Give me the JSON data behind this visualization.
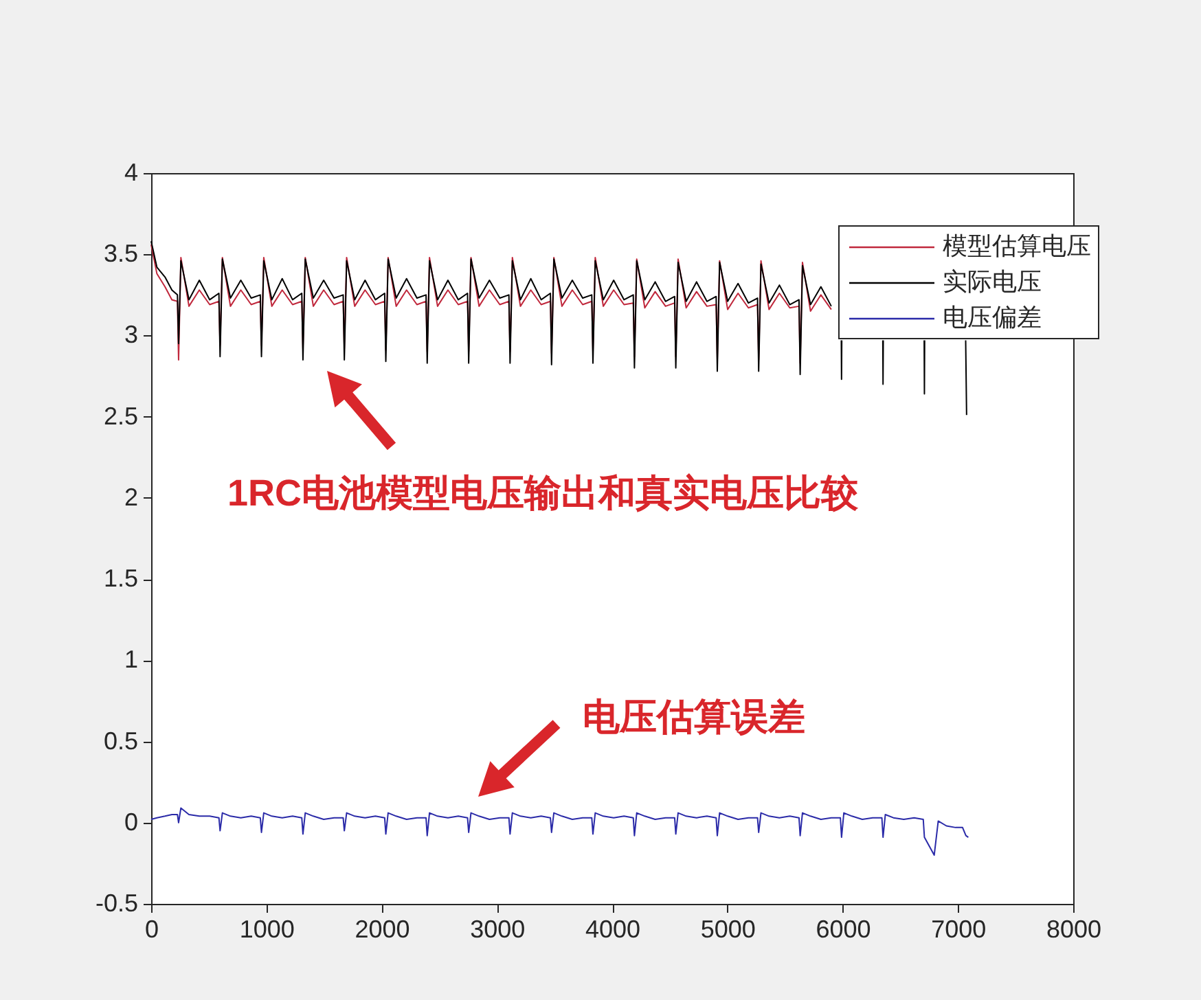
{
  "chart_data": {
    "type": "line",
    "xlim": [
      0,
      8000
    ],
    "xticks": [
      0,
      1000,
      2000,
      3000,
      4000,
      5000,
      6000,
      7000,
      8000
    ],
    "ylim": [
      -0.5,
      4
    ],
    "yticks": [
      -0.5,
      0,
      0.5,
      1,
      1.5,
      2,
      2.5,
      3,
      3.5,
      4
    ],
    "legend": "top right",
    "annotations": [
      "1RC电池模型电压输出和真实电压比较",
      "电压估算误差"
    ],
    "x": [
      0,
      50,
      120,
      180,
      228,
      238,
      258,
      328,
      418,
      508,
      588,
      598,
      618,
      688,
      778,
      868,
      947,
      957,
      977,
      1047,
      1137,
      1227,
      1307,
      1317,
      1337,
      1407,
      1497,
      1587,
      1666,
      1676,
      1696,
      1766,
      1856,
      1946,
      2026,
      2036,
      2056,
      2126,
      2216,
      2306,
      2385,
      2395,
      2415,
      2485,
      2575,
      2665,
      2745,
      2755,
      2775,
      2845,
      2935,
      3025,
      3104,
      3114,
      3134,
      3204,
      3294,
      3384,
      3464,
      3474,
      3494,
      3564,
      3654,
      3744,
      3823,
      3833,
      3853,
      3923,
      4013,
      4103,
      4183,
      4193,
      4213,
      4283,
      4373,
      4463,
      4542,
      4552,
      4572,
      4642,
      4732,
      4822,
      4902,
      4912,
      4932,
      5002,
      5092,
      5182,
      5261,
      5271,
      5291,
      5361,
      5451,
      5541,
      5621,
      5631,
      5651,
      5721,
      5811,
      5901,
      5980,
      5988,
      5990,
      5992,
      6340,
      6348,
      6350,
      6352,
      6699,
      6707,
      6709,
      6711,
      7059,
      7067,
      7075
    ],
    "series": [
      {
        "name": "模型估算电压",
        "color": "#c0283c",
        "x": [
          0,
          50,
          120,
          180,
          228,
          238,
          258,
          328,
          418,
          508,
          588,
          598,
          618,
          688,
          778,
          868,
          947,
          957,
          977,
          1047,
          1137,
          1227,
          1307,
          1317,
          1337,
          1407,
          1497,
          1587,
          1666,
          1676,
          1696,
          1766,
          1856,
          1946,
          2026,
          2036,
          2056,
          2126,
          2216,
          2306,
          2385,
          2395,
          2415,
          2485,
          2575,
          2665,
          2745,
          2755,
          2775,
          2845,
          2935,
          3025,
          3104,
          3114,
          3134,
          3204,
          3294,
          3384,
          3464,
          3474,
          3494,
          3564,
          3654,
          3744,
          3823,
          3833,
          3853,
          3923,
          4013,
          4103,
          4183,
          4193,
          4213,
          4283,
          4373,
          4463,
          4542,
          4552,
          4572,
          4642,
          4732,
          4822,
          4902,
          4912,
          4932,
          5002,
          5092,
          5182,
          5261,
          5271,
          5291,
          5361,
          5451,
          5541,
          5621,
          5631,
          5651,
          5721,
          5811,
          5901
        ],
        "values": [
          3.56,
          3.38,
          3.3,
          3.22,
          3.21,
          2.85,
          3.48,
          3.18,
          3.28,
          3.19,
          3.21,
          2.94,
          3.48,
          3.18,
          3.28,
          3.19,
          3.21,
          2.94,
          3.48,
          3.18,
          3.28,
          3.19,
          3.21,
          2.92,
          3.48,
          3.18,
          3.28,
          3.19,
          3.21,
          2.92,
          3.48,
          3.18,
          3.28,
          3.19,
          3.21,
          2.91,
          3.48,
          3.18,
          3.28,
          3.19,
          3.21,
          2.9,
          3.48,
          3.18,
          3.28,
          3.19,
          3.21,
          2.9,
          3.48,
          3.18,
          3.28,
          3.19,
          3.21,
          2.9,
          3.48,
          3.18,
          3.28,
          3.19,
          3.21,
          2.89,
          3.48,
          3.18,
          3.28,
          3.19,
          3.21,
          2.9,
          3.48,
          3.18,
          3.28,
          3.19,
          3.2,
          2.87,
          3.47,
          3.17,
          3.27,
          3.18,
          3.2,
          2.87,
          3.47,
          3.17,
          3.27,
          3.18,
          3.19,
          2.85,
          3.46,
          3.16,
          3.26,
          3.17,
          3.19,
          2.85,
          3.46,
          3.16,
          3.26,
          3.17,
          3.18,
          2.83,
          3.45,
          3.15,
          3.25,
          3.16
        ]
      },
      {
        "name": "实际电压",
        "color": "#000000",
        "values": [
          3.58,
          3.42,
          3.36,
          3.28,
          3.25,
          2.95,
          3.46,
          3.22,
          3.34,
          3.22,
          3.26,
          2.87,
          3.47,
          3.23,
          3.34,
          3.23,
          3.25,
          2.87,
          3.46,
          3.22,
          3.35,
          3.22,
          3.26,
          2.85,
          3.47,
          3.23,
          3.34,
          3.23,
          3.25,
          2.85,
          3.46,
          3.22,
          3.34,
          3.22,
          3.26,
          2.84,
          3.47,
          3.23,
          3.35,
          3.23,
          3.25,
          2.83,
          3.46,
          3.22,
          3.34,
          3.22,
          3.26,
          2.83,
          3.47,
          3.23,
          3.34,
          3.23,
          3.25,
          2.83,
          3.46,
          3.22,
          3.35,
          3.22,
          3.26,
          2.82,
          3.47,
          3.23,
          3.34,
          3.23,
          3.25,
          2.83,
          3.46,
          3.22,
          3.34,
          3.22,
          3.25,
          2.8,
          3.46,
          3.22,
          3.33,
          3.21,
          3.24,
          2.8,
          3.45,
          3.21,
          3.33,
          3.21,
          3.24,
          2.78,
          3.45,
          3.21,
          3.32,
          3.2,
          3.23,
          2.78,
          3.44,
          3.2,
          3.31,
          3.19,
          3.22,
          2.76,
          3.43,
          3.19,
          3.3,
          3.18,
          null,
          2.97,
          2.73,
          2.97,
          null,
          2.97,
          2.7,
          2.97,
          null,
          2.97,
          2.64,
          2.97,
          null,
          2.97,
          2.51
        ]
      },
      {
        "name": "电压偏差",
        "color": "#2a2aa8",
        "x": [
          0,
          50,
          120,
          180,
          228,
          238,
          258,
          328,
          418,
          508,
          588,
          598,
          618,
          688,
          778,
          868,
          947,
          957,
          977,
          1047,
          1137,
          1227,
          1307,
          1317,
          1337,
          1407,
          1497,
          1587,
          1666,
          1676,
          1696,
          1766,
          1856,
          1946,
          2026,
          2036,
          2056,
          2126,
          2216,
          2306,
          2385,
          2395,
          2415,
          2485,
          2575,
          2665,
          2745,
          2755,
          2775,
          2845,
          2935,
          3025,
          3104,
          3114,
          3134,
          3204,
          3294,
          3384,
          3464,
          3474,
          3494,
          3564,
          3654,
          3744,
          3823,
          3833,
          3853,
          3923,
          4013,
          4103,
          4183,
          4193,
          4213,
          4283,
          4373,
          4463,
          4542,
          4552,
          4572,
          4642,
          4732,
          4822,
          4902,
          4912,
          4932,
          5002,
          5092,
          5182,
          5261,
          5271,
          5291,
          5361,
          5451,
          5541,
          5621,
          5631,
          5651,
          5721,
          5811,
          5901,
          5980,
          5990,
          6010,
          6080,
          6170,
          6260,
          6340,
          6350,
          6370,
          6440,
          6530,
          6620,
          6699,
          6709,
          6794,
          6829,
          6900,
          6979,
          7040,
          7069,
          7090
        ],
        "values": [
          0.02,
          0.03,
          0.04,
          0.05,
          0.05,
          0.0,
          0.09,
          0.05,
          0.04,
          0.04,
          0.03,
          -0.05,
          0.06,
          0.04,
          0.03,
          0.04,
          0.03,
          -0.06,
          0.06,
          0.04,
          0.03,
          0.04,
          0.03,
          -0.07,
          0.06,
          0.04,
          0.02,
          0.03,
          0.03,
          -0.05,
          0.06,
          0.04,
          0.03,
          0.04,
          0.03,
          -0.07,
          0.06,
          0.04,
          0.02,
          0.03,
          0.03,
          -0.08,
          0.06,
          0.04,
          0.03,
          0.04,
          0.03,
          -0.06,
          0.06,
          0.04,
          0.02,
          0.03,
          0.03,
          -0.07,
          0.06,
          0.04,
          0.03,
          0.04,
          0.03,
          -0.06,
          0.06,
          0.04,
          0.02,
          0.03,
          0.03,
          -0.07,
          0.06,
          0.04,
          0.03,
          0.04,
          0.03,
          -0.08,
          0.06,
          0.04,
          0.02,
          0.03,
          0.03,
          -0.07,
          0.06,
          0.04,
          0.03,
          0.04,
          0.03,
          -0.08,
          0.06,
          0.04,
          0.02,
          0.03,
          0.03,
          -0.06,
          0.06,
          0.04,
          0.03,
          0.04,
          0.03,
          -0.08,
          0.06,
          0.04,
          0.02,
          0.03,
          0.03,
          -0.09,
          0.06,
          0.04,
          0.02,
          0.03,
          0.03,
          -0.09,
          0.05,
          0.03,
          0.02,
          0.03,
          0.02,
          -0.09,
          -0.2,
          0.01,
          -0.02,
          -0.03,
          -0.03,
          -0.08,
          -0.09
        ]
      }
    ]
  }
}
